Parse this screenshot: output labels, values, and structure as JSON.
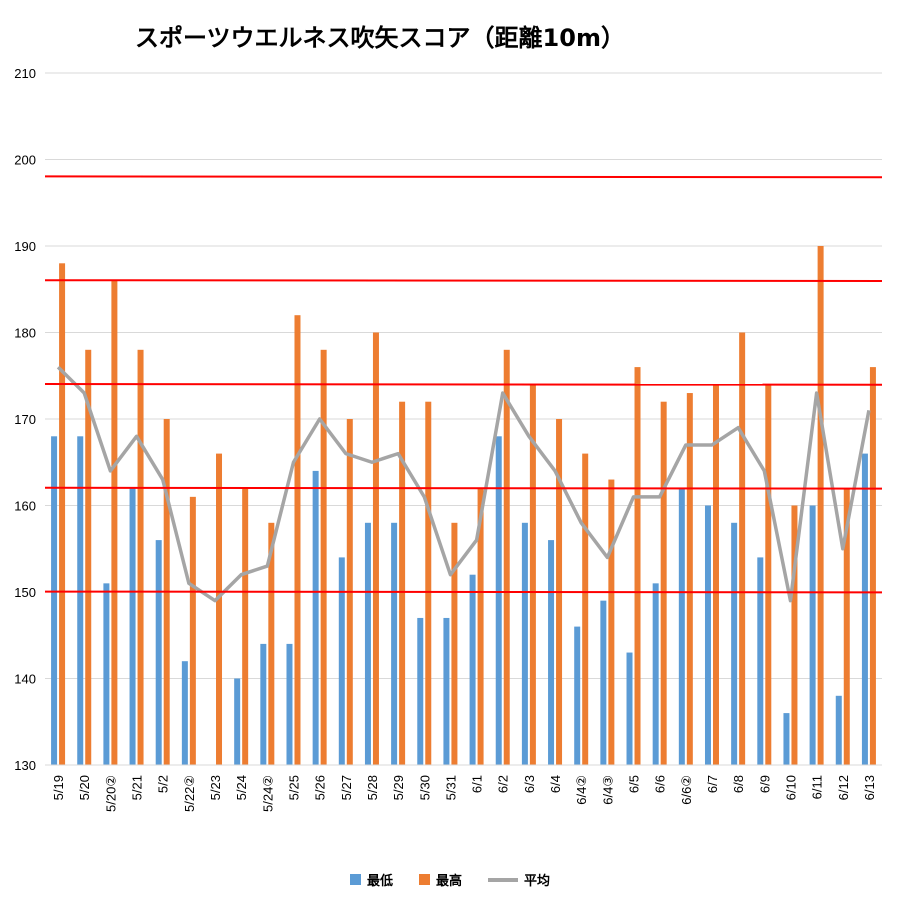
{
  "chart_data": {
    "type": "bar",
    "title": "スポーツウエルネス吹矢スコア（距離10m）",
    "xlabel": "",
    "ylabel": "",
    "ylim": [
      130,
      210
    ],
    "yticks": [
      130,
      140,
      150,
      160,
      170,
      180,
      190,
      200,
      210
    ],
    "grid": true,
    "legend_position": "bottom",
    "categories": [
      "5/19",
      "5/20",
      "5/20②",
      "5/21",
      "5/2",
      "5/22②",
      "5/23",
      "5/24",
      "5/24②",
      "5/25",
      "5/26",
      "5/27",
      "5/28",
      "5/29",
      "5/30",
      "5/31",
      "6/1",
      "6/2",
      "6/3",
      "6/4",
      "6/4②",
      "6/4③",
      "6/5",
      "6/6",
      "6/6②",
      "6/7",
      "6/8",
      "6/9",
      "6/10",
      "6/11",
      "6/12",
      "6/13"
    ],
    "series": [
      {
        "name": "最低",
        "kind": "bar",
        "color": "#5B9BD5",
        "values": [
          168,
          168,
          151,
          162,
          156,
          142,
          null,
          140,
          144,
          144,
          164,
          154,
          158,
          158,
          147,
          147,
          152,
          168,
          158,
          156,
          146,
          149,
          143,
          151,
          162,
          160,
          158,
          154,
          136,
          160,
          138,
          166
        ]
      },
      {
        "name": "最高",
        "kind": "bar",
        "color": "#ED7D31",
        "values": [
          188,
          178,
          186,
          178,
          170,
          161,
          166,
          162,
          158,
          182,
          178,
          170,
          180,
          172,
          172,
          158,
          162,
          178,
          174,
          170,
          166,
          163,
          176,
          172,
          173,
          174,
          180,
          174,
          160,
          190,
          162,
          176
        ]
      },
      {
        "name": "平均",
        "kind": "line",
        "color": "#A5A5A5",
        "values": [
          176,
          173,
          164,
          168,
          163,
          151,
          149,
          152,
          153,
          165,
          170,
          166,
          165,
          166,
          161,
          152,
          156,
          173,
          168,
          164,
          158,
          154,
          161,
          161,
          167,
          167,
          169,
          164,
          149,
          173,
          155,
          171
        ]
      }
    ],
    "reference_lines": {
      "color": "#FF0000",
      "values": [
        198,
        186,
        174,
        162,
        150
      ]
    }
  }
}
